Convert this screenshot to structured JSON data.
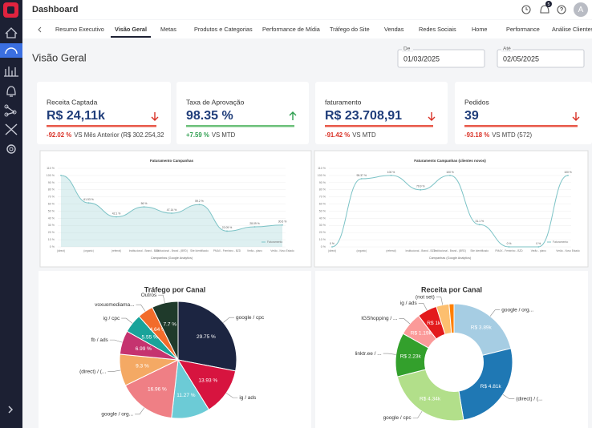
{
  "header": {
    "title": "Dashboard",
    "notifications": "5",
    "avatar": "A"
  },
  "tabs": [
    "Resumo Executivo",
    "Visão Geral",
    "Metas",
    "Produtos e Categorias",
    "Performance de Mídia",
    "Tráfego do Site",
    "Vendas",
    "Redes Sociais",
    "Home",
    "Performance",
    "Análise Clientes"
  ],
  "active_tab": 1,
  "page_title": "Visão Geral",
  "date_from": {
    "label": "De",
    "value": "01/03/2025"
  },
  "date_to": {
    "label": "Até",
    "value": "02/05/2025"
  },
  "kpis": [
    {
      "title": "Receita Captada",
      "value": "R$ 24,11k",
      "trend": "down",
      "change": "-92.02 %",
      "comparison": "VS Mês Anterior (R$ 302.254,32"
    },
    {
      "title": "Taxa de Aprovação",
      "value": "98.35 %",
      "trend": "up",
      "change": "+7.59 %",
      "comparison": "VS MTD"
    },
    {
      "title": "faturamento",
      "value": "R$ 23.708,91",
      "trend": "down",
      "change": "-91.42 %",
      "comparison": "VS MTD"
    },
    {
      "title": "Pedidos",
      "value": "39",
      "trend": "down",
      "change": "-93.18 %",
      "comparison": "VS MTD (572)"
    }
  ],
  "line_charts": [
    {
      "type": "line",
      "title": "Faturamento Campanhas",
      "x_label": "Campanhas (Google Analytics)",
      "legend": "Faturamento",
      "categories": [
        "(direct)",
        "(organic)",
        "(referral)",
        "Institucional - Brand - BZD",
        "Institucional - Brand - (BRD)",
        "Site Identificado",
        "PMAX - Feminino - BZD",
        "Verão - plano",
        "Verão - Novo Estado"
      ],
      "values": [
        100,
        61.53,
        42.1,
        56,
        47.14,
        59.2,
        22.09,
        28.09,
        30.6
      ],
      "value_labels": [
        null,
        "61.53 %",
        "42.1 %",
        "56 %",
        "47.14 %",
        "59.2 %",
        "22.09 %",
        "28.09 %",
        "30.6 %"
      ],
      "color": "#7cc3c6",
      "ylim": [
        0,
        110
      ],
      "yticks": [
        {
          "value": 0,
          "label": "0 %"
        },
        {
          "value": 10,
          "label": "10 %"
        },
        {
          "value": 20,
          "label": "20 %"
        },
        {
          "value": 30,
          "label": "30 %"
        },
        {
          "value": 40,
          "label": "40 %"
        },
        {
          "value": 50,
          "label": "50 %"
        },
        {
          "value": 60,
          "label": "60 %"
        },
        {
          "value": 70,
          "label": "70 %"
        },
        {
          "value": 80,
          "label": "80 %"
        },
        {
          "value": 90,
          "label": "90 %"
        },
        {
          "value": 100,
          "label": "100 %"
        },
        {
          "value": 110,
          "label": "110 %"
        }
      ],
      "area": true
    },
    {
      "type": "line",
      "title": "Faturamento Campanhas (clientes novos)",
      "x_label": "Campanhas (Google Analytics)",
      "legend": "Faturamento",
      "categories": [
        "(direct)",
        "(organic)",
        "(referral)",
        "Institucional - Brand - BZD",
        "Institucional - Brand - (BRD)",
        "Site Identificado",
        "PMAX - Feminino - BZD",
        "Verão - plano",
        "Verão - Novo Estado"
      ],
      "values": [
        0,
        95.37,
        100,
        79.9,
        100,
        31.1,
        0,
        0,
        100
      ],
      "value_labels": [
        "0 %",
        "95.37 %",
        "100 %",
        "79.9 %",
        "100 %",
        "31.1 %",
        "0 %",
        "0 %",
        "100 %"
      ],
      "color": "#7cc3c6",
      "ylim": [
        0,
        110
      ],
      "yticks": [
        {
          "value": 0,
          "label": "0 %"
        },
        {
          "value": 10,
          "label": "10 %"
        },
        {
          "value": 20,
          "label": "20 %"
        },
        {
          "value": 30,
          "label": "30 %"
        },
        {
          "value": 40,
          "label": "40 %"
        },
        {
          "value": 50,
          "label": "50 %"
        },
        {
          "value": 60,
          "label": "60 %"
        },
        {
          "value": 70,
          "label": "70 %"
        },
        {
          "value": 80,
          "label": "80 %"
        },
        {
          "value": 90,
          "label": "90 %"
        },
        {
          "value": 100,
          "label": "100 %"
        },
        {
          "value": 110,
          "label": "110 %"
        }
      ],
      "area": false
    }
  ],
  "pies": [
    {
      "type": "pie",
      "title": "Tráfego por Canal",
      "labels": [
        "google / cpc",
        "ig / ads",
        null,
        "google / org...",
        "(direct) / (...",
        "fb / ads",
        "ig / cpc",
        "voxuomediama...",
        "Outros"
      ],
      "values": [
        29.75,
        13.93,
        11.27,
        16.96,
        9.3,
        6.99,
        5.55,
        4.64,
        7.7
      ],
      "value_labels": [
        "29.75 %",
        "13.93 %",
        "11.27 %",
        "16.96 %",
        "9.3 %",
        "6.99 %",
        "5.55 %",
        "4.64 %",
        "7.7 %"
      ],
      "colors": [
        "#1c2541",
        "#d7143f",
        "#6ccbd6",
        "#ef7f85",
        "#f4a964",
        "#c5336f",
        "#19a39a",
        "#f26c2b",
        "#1f3a2b"
      ],
      "donut": false
    },
    {
      "type": "pie",
      "title": "Receita por Canal",
      "labels": [
        "google / org...",
        "(direct) / (...",
        "google / cpc",
        "linktr.ee / ...",
        "IGShopping / ...",
        "ig / ads",
        "(not set)",
        null
      ],
      "values": [
        3890,
        4810,
        4340,
        2230,
        1190,
        1000,
        650,
        250
      ],
      "value_labels": [
        "R$ 3.89k",
        "R$ 4.81k",
        "R$ 4.34k",
        "R$ 2.23k",
        "R$ 1.19k",
        "R$ 1k",
        null,
        null
      ],
      "colors": [
        "#a6cde3",
        "#1f78b4",
        "#b2df8a",
        "#33a02c",
        "#fb9a99",
        "#e31a1c",
        "#fdbf6f",
        "#ff7f00"
      ],
      "donut": true
    }
  ]
}
